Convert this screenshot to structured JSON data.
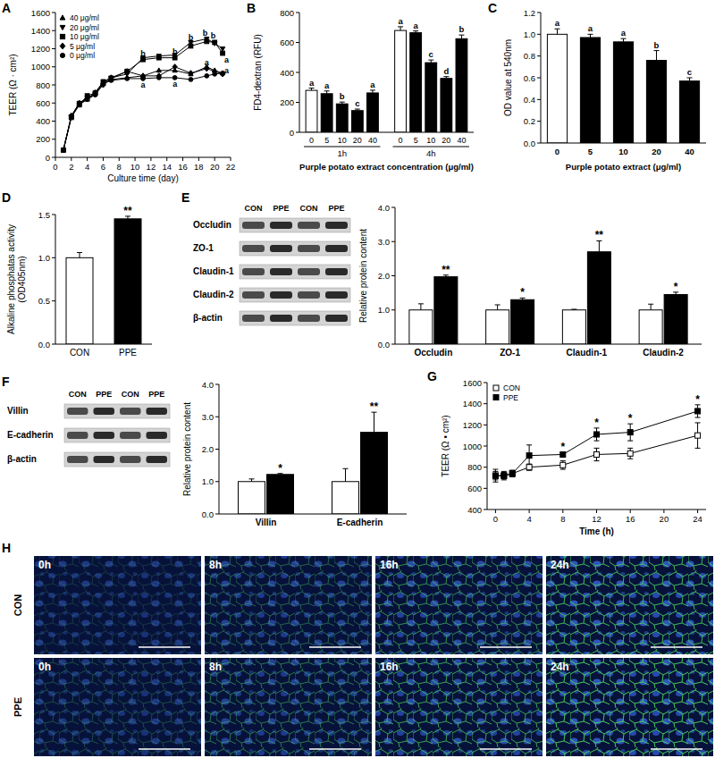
{
  "chart_data": [
    {
      "panel": "A",
      "type": "line",
      "x_label": "Culture time (day)",
      "y_label": "TEER (Ω · cm²)",
      "x": [
        1,
        2,
        3,
        4,
        5,
        6,
        7,
        9,
        11,
        13,
        15,
        17,
        19,
        20,
        21
      ],
      "xlim": [
        0,
        22
      ],
      "xticks": [
        0,
        2,
        4,
        6,
        8,
        10,
        12,
        14,
        16,
        18,
        20,
        22
      ],
      "ylim": [
        0,
        1600
      ],
      "yticks": [
        0,
        200,
        400,
        600,
        800,
        1000,
        1200,
        1400,
        1600
      ],
      "legend": "upper left",
      "series": [
        {
          "name": "40 μg/ml",
          "color": "#000000",
          "marker": "triangle-up",
          "values": [
            80,
            450,
            590,
            640,
            720,
            830,
            860,
            880,
            900,
            960,
            960,
            920,
            1000,
            960,
            930
          ]
        },
        {
          "name": "20 μg/ml",
          "color": "#000000",
          "marker": "triangle-down",
          "values": [
            80,
            450,
            600,
            660,
            700,
            840,
            880,
            920,
            1100,
            1120,
            1130,
            1270,
            1310,
            1260,
            1200
          ]
        },
        {
          "name": "10 μg/ml",
          "color": "#000000",
          "marker": "square",
          "values": [
            80,
            440,
            580,
            680,
            710,
            820,
            870,
            950,
            1080,
            1100,
            1100,
            1230,
            1280,
            1270,
            1150
          ]
        },
        {
          "name": "5 μg/ml",
          "color": "#000000",
          "marker": "diamond",
          "values": [
            80,
            460,
            600,
            650,
            700,
            800,
            880,
            950,
            900,
            900,
            1000,
            930,
            980,
            950,
            920
          ]
        },
        {
          "name": "0 μg/ml",
          "color": "#000000",
          "marker": "circle",
          "values": [
            80,
            450,
            580,
            640,
            690,
            810,
            850,
            870,
            870,
            880,
            880,
            860,
            900,
            920,
            930
          ]
        }
      ],
      "annotations": [
        {
          "text": "b",
          "x": 11,
          "y": 1150
        },
        {
          "text": "a",
          "x": 11,
          "y": 800
        },
        {
          "text": "b",
          "x": 15,
          "y": 1170
        },
        {
          "text": "a",
          "x": 15,
          "y": 810
        },
        {
          "text": "b",
          "x": 17,
          "y": 1320
        },
        {
          "text": "b",
          "x": 18.8,
          "y": 1370
        },
        {
          "text": "b",
          "x": 19.8,
          "y": 1340
        },
        {
          "text": "a",
          "x": 19,
          "y": 1050
        },
        {
          "text": "a",
          "x": 21.5,
          "y": 1080
        },
        {
          "text": "a",
          "x": 21.5,
          "y": 960
        }
      ]
    },
    {
      "panel": "B",
      "type": "bar",
      "y_label": "FD4-dextran (RFU)",
      "x_label": "Purple potato extract concentration (μg/ml)",
      "categories": [
        "0",
        "5",
        "10",
        "20",
        "40"
      ],
      "colors": [
        "#ffffff",
        "#000000",
        "#000000",
        "#000000",
        "#000000"
      ],
      "ylim": [
        0,
        800
      ],
      "yticks": [
        0,
        200,
        400,
        600,
        800
      ],
      "series": [
        {
          "name": "1h",
          "values": [
            280,
            258,
            190,
            145,
            263
          ],
          "errors": [
            15,
            18,
            12,
            10,
            18
          ],
          "letters": [
            "a",
            "a",
            "b",
            "c",
            "a"
          ]
        },
        {
          "name": "4h",
          "values": [
            680,
            665,
            465,
            360,
            625
          ],
          "errors": [
            25,
            12,
            18,
            12,
            25
          ],
          "letters": [
            "a",
            "a",
            "c",
            "d",
            "b"
          ]
        }
      ]
    },
    {
      "panel": "C",
      "type": "bar",
      "y_label": "OD value at 540nm",
      "x_label": "Purple potato extract (μg/ml)",
      "categories": [
        "0",
        "5",
        "10",
        "20",
        "40"
      ],
      "colors": [
        "#ffffff",
        "#000000",
        "#000000",
        "#000000",
        "#000000"
      ],
      "values": [
        1.0,
        0.97,
        0.93,
        0.76,
        0.57
      ],
      "errors": [
        0.05,
        0.03,
        0.03,
        0.09,
        0.03
      ],
      "letters": [
        "a",
        "a",
        "a",
        "b",
        "c"
      ],
      "ylim": [
        0,
        1.2
      ],
      "yticks": [
        {
          "value": 0,
          "label": "0.0"
        },
        {
          "value": 0.2,
          "label": "0.2"
        },
        {
          "value": 0.4,
          "label": "0.4"
        },
        {
          "value": 0.6,
          "label": "0.6"
        },
        {
          "value": 0.8,
          "label": "0.8"
        },
        {
          "value": 1.0,
          "label": "1.0"
        },
        {
          "value": 1.2,
          "label": "1.2"
        }
      ]
    },
    {
      "panel": "D",
      "type": "bar",
      "y_label": [
        "Alkaline phosphatas activity",
        "(OD405nm)"
      ],
      "categories": [
        "CON",
        "PPE"
      ],
      "colors": [
        "#ffffff",
        "#000000"
      ],
      "values": [
        1.0,
        1.45
      ],
      "errors": [
        0.06,
        0.03
      ],
      "significance": [
        null,
        "**"
      ],
      "ylim": [
        0,
        1.5
      ],
      "yticks": [
        {
          "value": 0,
          "label": "0.0"
        },
        {
          "value": 0.5,
          "label": "0.5"
        },
        {
          "value": 1.0,
          "label": "1.0"
        },
        {
          "value": 1.5,
          "label": "1.5"
        }
      ]
    },
    {
      "panel": "E",
      "type": "bar",
      "y_label": "Relative protein content",
      "blot": {
        "lanes": [
          "CON",
          "PPE",
          "CON",
          "PPE"
        ],
        "rows": [
          "Occludin",
          "ZO-1",
          "Claudin-1",
          "Claudin-2",
          "β-actin"
        ]
      },
      "categories": [
        "Occludin",
        "ZO-1",
        "Claudin-1",
        "Claudin-2"
      ],
      "ylim": [
        0,
        4
      ],
      "yticks": [
        {
          "value": 0,
          "label": "0.0"
        },
        {
          "value": 1,
          "label": "1.0"
        },
        {
          "value": 2,
          "label": "2.0"
        },
        {
          "value": 3,
          "label": "3.0"
        },
        {
          "value": 4,
          "label": "4.0"
        }
      ],
      "series": [
        {
          "color": "#ffffff",
          "values": [
            1.0,
            1.0,
            1.0,
            1.0
          ],
          "errors": [
            0.18,
            0.15,
            0.02,
            0.17
          ]
        },
        {
          "color": "#000000",
          "values": [
            1.97,
            1.3,
            2.7,
            1.45
          ],
          "errors": [
            0.05,
            0.05,
            0.32,
            0.07
          ],
          "significance": [
            "**",
            "*",
            "**",
            "*"
          ]
        }
      ]
    },
    {
      "panel": "F",
      "type": "bar",
      "y_label": "Relative protein content",
      "blot": {
        "lanes": [
          "CON",
          "PPE",
          "CON",
          "PPE"
        ],
        "rows": [
          "Villin",
          "E-cadherin",
          "β-actin"
        ]
      },
      "categories": [
        "Villin",
        "E-cadherin"
      ],
      "ylim": [
        0,
        4
      ],
      "yticks": [
        {
          "value": 0,
          "label": "0.0"
        },
        {
          "value": 1,
          "label": "1.0"
        },
        {
          "value": 2,
          "label": "2.0"
        },
        {
          "value": 3,
          "label": "3.0"
        },
        {
          "value": 4,
          "label": "4.0"
        }
      ],
      "series": [
        {
          "color": "#ffffff",
          "values": [
            1.0,
            1.0
          ],
          "errors": [
            0.08,
            0.4
          ]
        },
        {
          "color": "#000000",
          "values": [
            1.22,
            2.52
          ],
          "errors": [
            0.03,
            0.62
          ],
          "significance": [
            "*",
            "**"
          ]
        }
      ]
    },
    {
      "panel": "G",
      "type": "line",
      "x_label": "Time (h)",
      "y_label": "TEER (Ω • cm²)",
      "x": [
        0,
        1,
        2,
        4,
        8,
        12,
        16,
        24
      ],
      "xlim": [
        -1,
        25
      ],
      "xticks": [
        0,
        4,
        8,
        12,
        16,
        20,
        24
      ],
      "ylim": [
        400,
        1600
      ],
      "yticks": [
        400,
        600,
        800,
        1000,
        1200,
        1400,
        1600
      ],
      "legend": "upper left",
      "series": [
        {
          "name": "CON",
          "color": "#ffffff",
          "marker": "square",
          "values": [
            720,
            720,
            740,
            800,
            820,
            920,
            930,
            1100
          ],
          "errors": [
            40,
            30,
            30,
            30,
            40,
            60,
            50,
            120
          ]
        },
        {
          "name": "PPE",
          "color": "#000000",
          "marker": "square",
          "values": [
            720,
            720,
            740,
            910,
            920,
            1110,
            1130,
            1330
          ],
          "errors": [
            60,
            40,
            30,
            100,
            20,
            60,
            80,
            60
          ],
          "significance": [
            null,
            null,
            null,
            null,
            "*",
            "*",
            "*",
            "*"
          ]
        }
      ]
    }
  ],
  "panel_h": {
    "panel": "H",
    "rows": [
      "CON",
      "PPE"
    ],
    "columns": [
      "0h",
      "8h",
      "16h",
      "24h"
    ]
  }
}
